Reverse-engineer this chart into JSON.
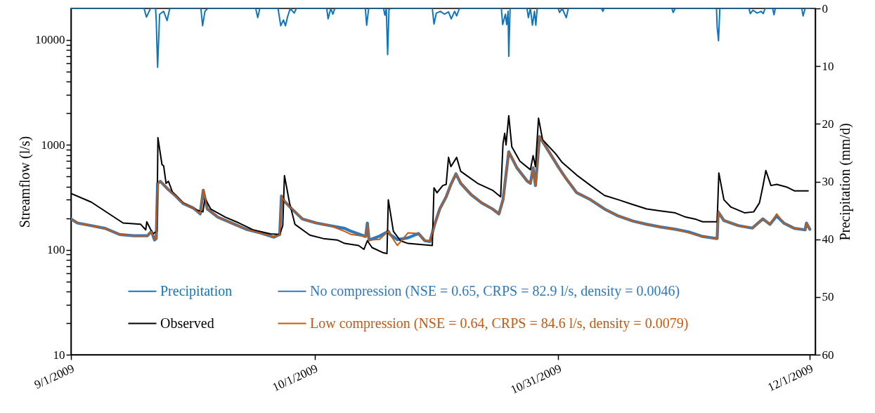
{
  "chart_data": {
    "type": "line",
    "xlabel": null,
    "ylabel": "Streamflow (l/s)",
    "y2label": "Precipitation (mm/d)",
    "log": "y",
    "legend": "bottom",
    "xlim": [
      "2009-09-01",
      "2009-12-01T16:00"
    ],
    "xticks": [
      {
        "value": "2009-09-01",
        "label": "9/1/2009"
      },
      {
        "value": "2009-10-01",
        "label": "10/1/2009"
      },
      {
        "value": "2009-10-31",
        "label": "10/31/2009"
      },
      {
        "value": "2009-12-01",
        "label": "12/1/2009"
      }
    ],
    "ylim": [
      10,
      20000
    ],
    "yticks": [
      10,
      {
        "value": 20,
        "label": null
      },
      {
        "value": 30,
        "label": null
      },
      {
        "value": 40,
        "label": null
      },
      {
        "value": 50,
        "label": null
      },
      {
        "value": 60,
        "label": null
      },
      {
        "value": 70,
        "label": null
      },
      {
        "value": 80,
        "label": null
      },
      {
        "value": 90,
        "label": null
      },
      100,
      {
        "value": 200,
        "label": null
      },
      {
        "value": 300,
        "label": null
      },
      {
        "value": 400,
        "label": null
      },
      {
        "value": 500,
        "label": null
      },
      {
        "value": 600,
        "label": null
      },
      {
        "value": 700,
        "label": null
      },
      {
        "value": 800,
        "label": null
      },
      {
        "value": 900,
        "label": null
      },
      1000,
      {
        "value": 2000,
        "label": null
      },
      {
        "value": 3000,
        "label": null
      },
      {
        "value": 4000,
        "label": null
      },
      {
        "value": 5000,
        "label": null
      },
      {
        "value": 6000,
        "label": null
      },
      {
        "value": 7000,
        "label": null
      },
      {
        "value": 8000,
        "label": null
      },
      {
        "value": 9000,
        "label": null
      },
      10000
    ],
    "y2lim": [
      60,
      0
    ],
    "y2ticks": [
      0,
      10,
      20,
      30,
      40,
      50,
      60
    ],
    "series": [
      {
        "name": "Precipitation",
        "color": "#0f75bc",
        "axis": "y2",
        "x": [
          "2009-09-01",
          "2009-09-10",
          "2009-09-10T07:00",
          "2009-09-10T19:00",
          "2009-09-11T10:00",
          "2009-09-11T12:00",
          "2009-09-11T16:00",
          "2009-09-11T22:00",
          "2009-09-12T10:00",
          "2009-09-12T20:00",
          "2009-09-13T04:00",
          "2009-09-17",
          "2009-09-17T05:00",
          "2009-09-17T12:00",
          "2009-09-17T20:00",
          "2009-09-23T18:00",
          "2009-09-24",
          "2009-09-24T06:00",
          "2009-09-26T12:00",
          "2009-09-26T20:00",
          "2009-09-27T04:00",
          "2009-09-27T10:00",
          "2009-09-27T16:00",
          "2009-09-28",
          "2009-09-28T12:00",
          "2009-09-28T18:00",
          "2009-10-02T12:00",
          "2009-10-02T16:00",
          "2009-10-03",
          "2009-10-03T06:00",
          "2009-10-03T12:00",
          "2009-10-07T06:00",
          "2009-10-07T10:00",
          "2009-10-07T16:00",
          "2009-10-09T12:00",
          "2009-10-09T16:00",
          "2009-10-09T20:00",
          "2009-10-10",
          "2009-10-10T04:00",
          "2009-10-10T08:00",
          "2009-10-15T12:00",
          "2009-10-15T17:00",
          "2009-10-16",
          "2009-10-16T12:00",
          "2009-10-17",
          "2009-10-17T12:00",
          "2009-10-17T20:00",
          "2009-10-18T06:00",
          "2009-10-18T12:00",
          "2009-10-18T20:00",
          "2009-10-24",
          "2009-10-24T04:00",
          "2009-10-24T12:00",
          "2009-10-24T16:00",
          "2009-10-24T20:00",
          "2009-10-24T22:00",
          "2009-10-25T02:00",
          "2009-10-27T04:00",
          "2009-10-27T08:00",
          "2009-10-27T14:00",
          "2009-10-27T20:00",
          "2009-10-28T02:00",
          "2009-10-28T06:00",
          "2009-10-28T10:00",
          "2009-10-31",
          "2009-10-31T04:00",
          "2009-10-31T12:00",
          "2009-11-01",
          "2009-11-01T06:00",
          "2009-11-05T08:00",
          "2009-11-05T12:00",
          "2009-11-05T16:00",
          "2009-11-14",
          "2009-11-14T04:00",
          "2009-11-14T10:00",
          "2009-11-19T12:00",
          "2009-11-19T14:00",
          "2009-11-19T18:00",
          "2009-11-19T22:00",
          "2009-11-23T12:00",
          "2009-11-23T16:00",
          "2009-11-24",
          "2009-11-24T12:00",
          "2009-11-25",
          "2009-11-25T06:00",
          "2009-11-25T12:00",
          "2009-11-26T10:00",
          "2009-11-26T14:00",
          "2009-11-26T18:00",
          "2009-11-30",
          "2009-11-30T04:00",
          "2009-11-30T10:00",
          "2009-12-01"
        ],
        "values": [
          0,
          0,
          1.5,
          0,
          0,
          2.1,
          10.2,
          1,
          0.5,
          2.1,
          0,
          0,
          3,
          0.5,
          0,
          0,
          1.6,
          0,
          0,
          3,
          2,
          3,
          1.5,
          0,
          0.8,
          0,
          0,
          1.8,
          0,
          1,
          0,
          0,
          2.9,
          0,
          0,
          1.2,
          0,
          8,
          0.2,
          0,
          0,
          2.7,
          0.8,
          0.5,
          1,
          0.6,
          1.8,
          0.5,
          1.3,
          0,
          0,
          2.8,
          1,
          2.8,
          0.5,
          8.3,
          0,
          0,
          1.6,
          0,
          2.9,
          0.5,
          2.9,
          0,
          0,
          0.7,
          0,
          1.6,
          0,
          0,
          0.5,
          0,
          0,
          0.7,
          0,
          0,
          3.2,
          5.6,
          0,
          0,
          0.9,
          0.3,
          0.8,
          0.5,
          0.9,
          0,
          0,
          1.1,
          0,
          0,
          1.3,
          0,
          0
        ]
      },
      {
        "name": "No compression (NSE = 0.65, CRPS = 82.9 l/s, density = 0.0046)",
        "color": "#2e78bd",
        "x": [
          "2009-09-01",
          "2009-09-01T19:00",
          "2009-09-03T12:00",
          "2009-09-05T05:00",
          "2009-09-07",
          "2009-09-08T17:00",
          "2009-09-10T10:00",
          "2009-09-10T22:00",
          "2009-09-11T07:00",
          "2009-09-11T12:00",
          "2009-09-11T16:00",
          "2009-09-12",
          "2009-09-13",
          "2009-09-13T22:00",
          "2009-09-14T19:00",
          "2009-09-16T02:00",
          "2009-09-16T22:00",
          "2009-09-17T07:00",
          "2009-09-17T19:00",
          "2009-09-19T02:00",
          "2009-09-20T19:00",
          "2009-09-22T14:00",
          "2009-09-24T07:00",
          "2009-09-26",
          "2009-09-26T17:00",
          "2009-09-26T22:00",
          "2009-09-27T07:00",
          "2009-09-28T05:00",
          "2009-09-29T12:00",
          "2009-10-01T05:00",
          "2009-10-02T22:00",
          "2009-10-04T17:00",
          "2009-10-05T12:00",
          "2009-10-07T07:00",
          "2009-10-07T12:00",
          "2009-10-07T17:00",
          "2009-10-09",
          "2009-10-10T02:00",
          "2009-10-10T07:00",
          "2009-10-11T05:00",
          "2009-10-12T12:00",
          "2009-10-13T19:00",
          "2009-10-14T14:00",
          "2009-10-15T05:00",
          "2009-10-15T19:00",
          "2009-10-16T10:00",
          "2009-10-17T05:00",
          "2009-10-17T19:00",
          "2009-10-18T10:00",
          "2009-10-19",
          "2009-10-20T07:00",
          "2009-10-21T14:00",
          "2009-10-22T22:00",
          "2009-10-23T17:00",
          "2009-10-24T05:00",
          "2009-10-24T10:00",
          "2009-10-24T22:00",
          "2009-10-25T22:00",
          "2009-10-27T05:00",
          "2009-10-27T14:00",
          "2009-10-27T22:00",
          "2009-10-28T05:00",
          "2009-10-28T17:00",
          "2009-10-29T19:00",
          "2009-10-31T02:00",
          "2009-11-01",
          "2009-11-02T07:00",
          "2009-11-04",
          "2009-11-05T17:00",
          "2009-11-07T10:00",
          "2009-11-09T05:00",
          "2009-11-10T22:00",
          "2009-11-12T14:00",
          "2009-11-14T10:00",
          "2009-11-16T02:00",
          "2009-11-17T19:00",
          "2009-11-19T14:00",
          "2009-11-19T17:00",
          "2009-11-20T10:00",
          "2009-11-22T05:00",
          "2009-11-23T22:00",
          "2009-11-25T05:00",
          "2009-11-26T02:00",
          "2009-11-26T22:00",
          "2009-11-27T19:00",
          "2009-11-29T02:00",
          "2009-11-30T10:00",
          "2009-11-30T14:00",
          "2009-12-01"
        ],
        "values": [
          197,
          180,
          170,
          160,
          140,
          136,
          136,
          150,
          124,
          128,
          430,
          450,
          375,
          325,
          277,
          250,
          220,
          370,
          245,
          205,
          180,
          157,
          145,
          132,
          140,
          325,
          290,
          245,
          197,
          180,
          170,
          160,
          150,
          134,
          180,
          124,
          135,
          150,
          140,
          125,
          130,
          143,
          122,
          120,
          175,
          245,
          320,
          420,
          530,
          430,
          335,
          280,
          245,
          220,
          300,
          410,
          860,
          605,
          450,
          430,
          605,
          410,
          1200,
          880,
          605,
          475,
          350,
          300,
          245,
          210,
          188,
          175,
          165,
          157,
          148,
          134,
          128,
          230,
          190,
          170,
          161,
          197,
          175,
          210,
          180,
          160,
          155,
          180,
          157
        ]
      },
      {
        "name": "Observed",
        "color": "#000000",
        "x": [
          "2009-09-01",
          "2009-09-03T12:00",
          "2009-09-07T10:00",
          "2009-09-09T14:00",
          "2009-09-10T05:00",
          "2009-09-10T08:00",
          "2009-09-11T02:00",
          "2009-09-11T14:00",
          "2009-09-11T17:00",
          "2009-09-12T05:00",
          "2009-09-12T10:00",
          "2009-09-12T17:00",
          "2009-09-13",
          "2009-09-13T12:00",
          "2009-09-14T19:00",
          "2009-09-16T12:00",
          "2009-09-17T06:00",
          "2009-09-17T12:00",
          "2009-09-18T05:00",
          "2009-09-20",
          "2009-09-21T17:00",
          "2009-09-23T10:00",
          "2009-09-25T14:00",
          "2009-09-26T17:00",
          "2009-09-27T02:00",
          "2009-09-27T07:00",
          "2009-09-27T22:00",
          "2009-09-28T14:00",
          "2009-09-30T10:00",
          "2009-10-02T02:00",
          "2009-10-03T19:00",
          "2009-10-04T17:00",
          "2009-10-06T10:00",
          "2009-10-07T02:00",
          "2009-10-07T12:00",
          "2009-10-08T02:00",
          "2009-10-09T10:00",
          "2009-10-09T22:00",
          "2009-10-10T02:00",
          "2009-10-10T17:00",
          "2009-10-11T14:00",
          "2009-10-12T12:00",
          "2009-10-14T05:00",
          "2009-10-15T12:00",
          "2009-10-15T17:00",
          "2009-10-16T02:00",
          "2009-10-16T19:00",
          "2009-10-17T05:00",
          "2009-10-17T12:00",
          "2009-10-17T19:00",
          "2009-10-18T12:00",
          "2009-10-19",
          "2009-10-21T02:00",
          "2009-10-22T22:00",
          "2009-10-23T22:00",
          "2009-10-24T05:00",
          "2009-10-24T10:00",
          "2009-10-24T14:00",
          "2009-10-24T22:00",
          "2009-10-25T07:00",
          "2009-10-26T07:00",
          "2009-10-27T14:00",
          "2009-10-27T22:00",
          "2009-10-28T05:00",
          "2009-10-28T14:00",
          "2009-10-29T02:00",
          "2009-10-30T17:00",
          "2009-10-31T12:00",
          "2009-11-02T07:00",
          "2009-11-04",
          "2009-11-05T17:00",
          "2009-11-07T10:00",
          "2009-11-09T05:00",
          "2009-11-10T22:00",
          "2009-11-12T14:00",
          "2009-11-14T10:00",
          "2009-11-15T17:00",
          "2009-11-17",
          "2009-11-17T19:00",
          "2009-11-19T14:00",
          "2009-11-19T19:00",
          "2009-11-20T10:00",
          "2009-11-21T07:00",
          "2009-11-23",
          "2009-11-24T02:00",
          "2009-11-24T19:00",
          "2009-11-25T05:00",
          "2009-11-25T14:00",
          "2009-11-26T05:00",
          "2009-11-26T22:00",
          "2009-11-28T05:00",
          "2009-11-29T02:00",
          "2009-11-30T19:00"
        ],
        "values": [
          345,
          285,
          180,
          175,
          155,
          185,
          142,
          150,
          1170,
          650,
          630,
          430,
          450,
          355,
          280,
          240,
          230,
          310,
          245,
          205,
          180,
          155,
          142,
          140,
          170,
          510,
          280,
          175,
          138,
          128,
          124,
          115,
          110,
          101,
          122,
          105,
          94,
          92,
          300,
          150,
          122,
          115,
          112,
          110,
          390,
          350,
          410,
          420,
          760,
          620,
          760,
          560,
          430,
          370,
          320,
          1030,
          1290,
          1000,
          1900,
          960,
          700,
          580,
          790,
          620,
          1800,
          1120,
          820,
          680,
          515,
          410,
          330,
          300,
          270,
          245,
          235,
          225,
          205,
          195,
          185,
          185,
          540,
          300,
          255,
          225,
          230,
          280,
          400,
          570,
          410,
          420,
          395,
          365,
          365
        ]
      },
      {
        "name": "Low compression (NSE = 0.64, CRPS = 84.6 l/s, density = 0.0079)",
        "color": "#c55a11",
        "x": [
          "2009-09-01",
          "2009-09-01T19:00",
          "2009-09-03T12:00",
          "2009-09-05T05:00",
          "2009-09-07",
          "2009-09-08T17:00",
          "2009-09-10T10:00",
          "2009-09-10T22:00",
          "2009-09-11T07:00",
          "2009-09-11T12:00",
          "2009-09-11T16:00",
          "2009-09-12",
          "2009-09-13",
          "2009-09-13T22:00",
          "2009-09-14T19:00",
          "2009-09-16T02:00",
          "2009-09-16T22:00",
          "2009-09-17T07:00",
          "2009-09-17T19:00",
          "2009-09-19T02:00",
          "2009-09-20T19:00",
          "2009-09-22T14:00",
          "2009-09-24T07:00",
          "2009-09-26",
          "2009-09-26T17:00",
          "2009-09-26T22:00",
          "2009-09-27T07:00",
          "2009-09-28T05:00",
          "2009-09-29T12:00",
          "2009-10-01T05:00",
          "2009-10-02T22:00",
          "2009-10-04T17:00",
          "2009-10-05T12:00",
          "2009-10-07T07:00",
          "2009-10-07T12:00",
          "2009-10-07T17:00",
          "2009-10-09",
          "2009-10-10T02:00",
          "2009-10-10T07:00",
          "2009-10-11T05:00",
          "2009-10-12T12:00",
          "2009-10-13T19:00",
          "2009-10-14T14:00",
          "2009-10-15T05:00",
          "2009-10-15T19:00",
          "2009-10-16T10:00",
          "2009-10-17T05:00",
          "2009-10-17T19:00",
          "2009-10-18T10:00",
          "2009-10-19",
          "2009-10-20T07:00",
          "2009-10-21T14:00",
          "2009-10-22T22:00",
          "2009-10-23T17:00",
          "2009-10-24T05:00",
          "2009-10-24T10:00",
          "2009-10-24T22:00",
          "2009-10-25T22:00",
          "2009-10-27T05:00",
          "2009-10-27T14:00",
          "2009-10-27T22:00",
          "2009-10-28T05:00",
          "2009-10-28T17:00",
          "2009-10-29T19:00",
          "2009-10-31T02:00",
          "2009-11-01",
          "2009-11-02T07:00",
          "2009-11-04",
          "2009-11-05T17:00",
          "2009-11-07T10:00",
          "2009-11-09T05:00",
          "2009-11-10T22:00",
          "2009-11-12T14:00",
          "2009-11-14T10:00",
          "2009-11-16T02:00",
          "2009-11-17T19:00",
          "2009-11-19T14:00",
          "2009-11-19T17:00",
          "2009-11-20T10:00",
          "2009-11-22T05:00",
          "2009-11-23T22:00",
          "2009-11-25T05:00",
          "2009-11-26T02:00",
          "2009-11-26T22:00",
          "2009-11-27T19:00",
          "2009-11-29T02:00",
          "2009-11-30T10:00",
          "2009-11-30T14:00",
          "2009-12-01"
        ],
        "values": [
          197,
          180,
          170,
          160,
          140,
          136,
          136,
          150,
          124,
          128,
          430,
          450,
          375,
          325,
          277,
          250,
          220,
          375,
          245,
          205,
          180,
          157,
          145,
          132,
          140,
          325,
          290,
          245,
          197,
          180,
          170,
          150,
          140,
          134,
          175,
          124,
          126,
          150,
          140,
          110,
          145,
          143,
          122,
          120,
          175,
          245,
          320,
          420,
          530,
          430,
          335,
          280,
          245,
          220,
          300,
          410,
          860,
          605,
          450,
          430,
          605,
          410,
          1200,
          880,
          605,
          475,
          350,
          300,
          245,
          210,
          188,
          175,
          165,
          157,
          145,
          134,
          128,
          230,
          190,
          170,
          161,
          197,
          175,
          220,
          180,
          160,
          155,
          180,
          157
        ]
      }
    ]
  }
}
